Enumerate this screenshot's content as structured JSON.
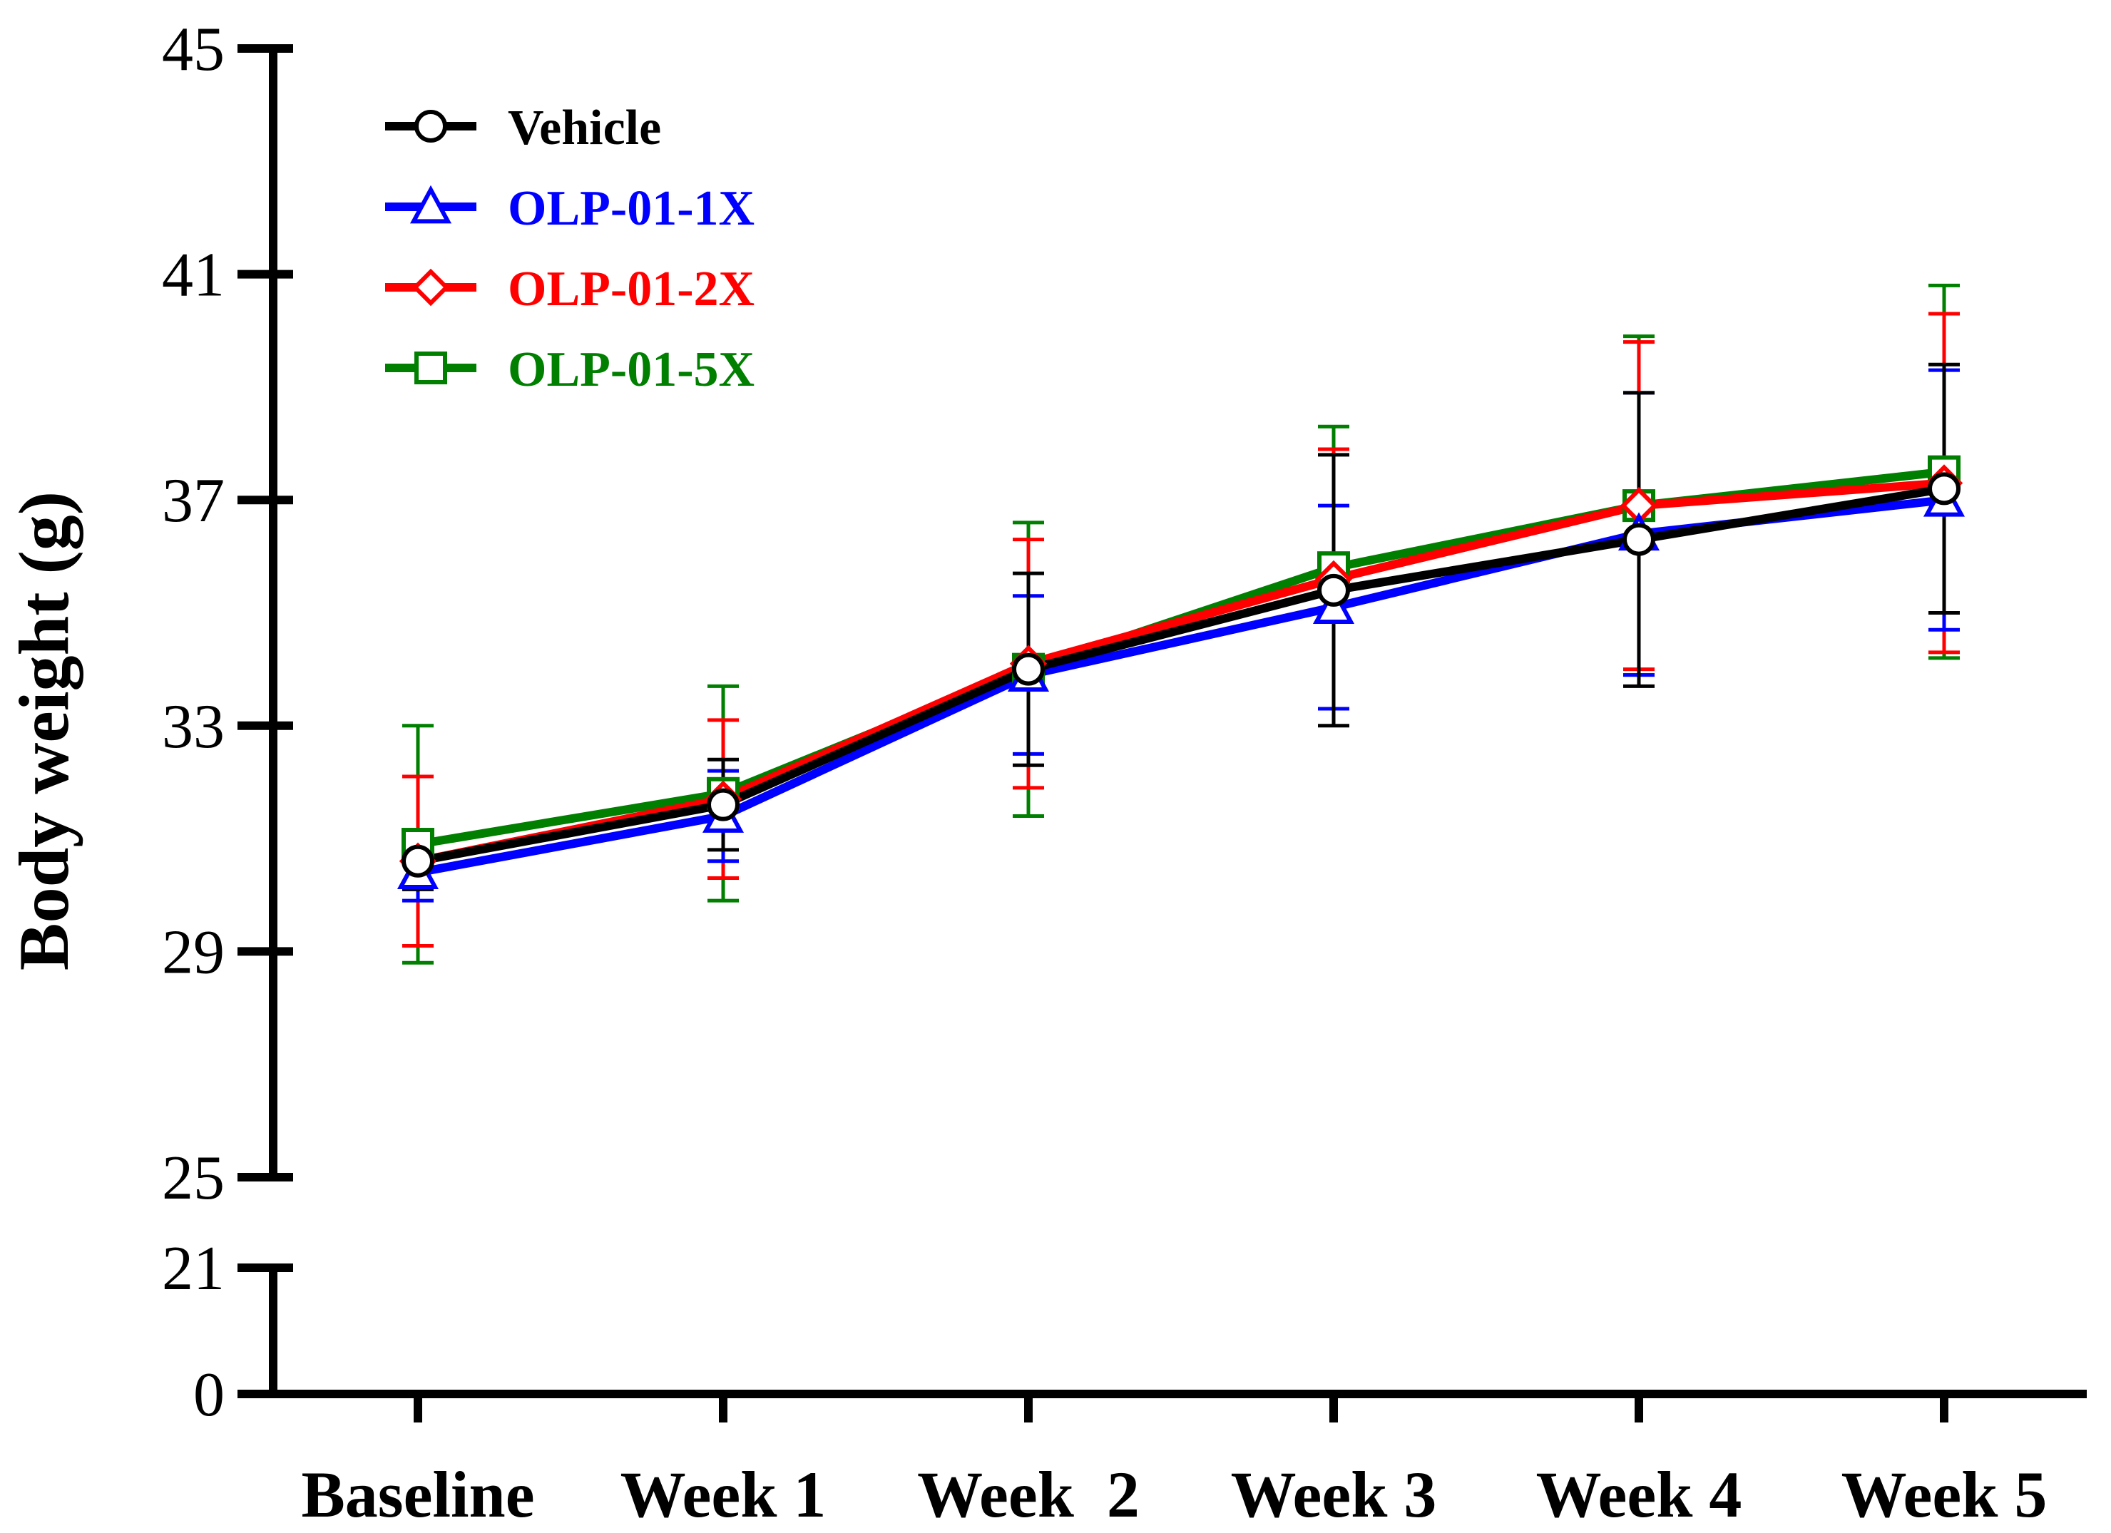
{
  "chart_data": {
    "type": "line",
    "title": "",
    "xlabel": "",
    "ylabel": "Body weight (g)",
    "categories": [
      "Baseline",
      "Week 1",
      "Week  2",
      "Week 3",
      "Week 4",
      "Week 5"
    ],
    "y_axis": {
      "broken": true,
      "lower_segment": [
        0,
        21
      ],
      "upper_segment": [
        25,
        45
      ],
      "ticks": [
        0,
        21,
        25,
        29,
        33,
        37,
        41,
        45
      ],
      "tick_labels": [
        "0",
        "21",
        "25",
        "29",
        "33",
        "37",
        "41",
        "45"
      ]
    },
    "legend_position": "top-left",
    "series": [
      {
        "name": "Vehicle",
        "color": "#000000",
        "marker": "circle",
        "values": [
          30.6,
          31.6,
          34.0,
          35.4,
          36.3,
          37.2
        ],
        "error": [
          0.5,
          0.8,
          1.7,
          2.4,
          2.6,
          2.2
        ]
      },
      {
        "name": "OLP-01-1X",
        "color": "#0000ff",
        "marker": "triangle",
        "values": [
          30.4,
          31.4,
          33.9,
          35.1,
          36.4,
          37.0
        ],
        "error": [
          0.5,
          0.8,
          1.4,
          1.8,
          2.5,
          2.3
        ]
      },
      {
        "name": "OLP-01-2X",
        "color": "#ff0000",
        "marker": "diamond",
        "values": [
          30.6,
          31.7,
          34.1,
          35.6,
          36.9,
          37.3
        ],
        "error": [
          1.5,
          1.4,
          2.2,
          2.3,
          2.9,
          3.0
        ]
      },
      {
        "name": "OLP-01-5X",
        "color": "#007f00",
        "marker": "square",
        "values": [
          30.9,
          31.8,
          34.0,
          35.8,
          36.9,
          37.5
        ],
        "error": [
          2.1,
          1.9,
          2.6,
          2.5,
          3.0,
          3.3
        ]
      }
    ]
  }
}
